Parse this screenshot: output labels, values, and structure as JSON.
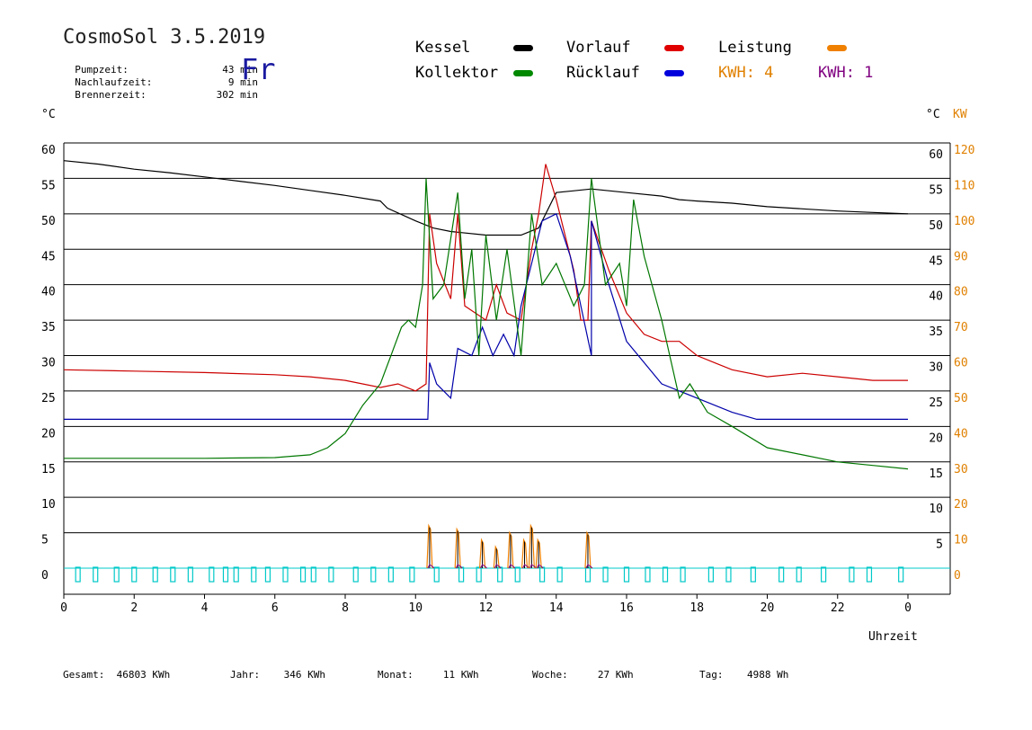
{
  "header": {
    "title": "CosmoSol 3.5.2019",
    "day": "Fr",
    "stats": [
      {
        "label": "Pumpzeit:",
        "value": "43 min"
      },
      {
        "label": "Nachlaufzeit:",
        "value": "9 min"
      },
      {
        "label": "Brennerzeit:",
        "value": "302 min"
      }
    ]
  },
  "legend": {
    "kessel": "Kessel",
    "vorlauf": "Vorlauf",
    "leistung": "Leistung",
    "kollektor": "Kollektor",
    "ruecklauf": "Rücklauf",
    "kwh_orange": "KWH: 4",
    "kwh_purple": "KWH: 1"
  },
  "axes": {
    "left_unit": "°C",
    "right_unit_c": "°C",
    "right_unit_kw": "KW",
    "x_label": "Uhrzeit"
  },
  "totals": [
    {
      "label": "Gesamt:",
      "value": "46803 KWh"
    },
    {
      "label": "Jahr:",
      "value": "346 KWh"
    },
    {
      "label": "Monat:",
      "value": "11 KWh"
    },
    {
      "label": "Woche:",
      "value": "27 KWh"
    },
    {
      "label": "Tag:",
      "value": "4988 Wh"
    }
  ],
  "colors": {
    "kessel": "#000000",
    "vorlauf": "#cc0000",
    "ruecklauf": "#0000aa",
    "kollektor": "#007700",
    "leistung": "#f08000",
    "kwh_purple": "#800080",
    "pump": "#00c8c8"
  },
  "chart_data": {
    "type": "line",
    "x_unit": "hours",
    "xlim": [
      0,
      24
    ],
    "x_ticks": [
      "0",
      "2",
      "4",
      "6",
      "8",
      "10",
      "12",
      "14",
      "16",
      "18",
      "20",
      "22",
      "0"
    ],
    "y_left_ticks": [
      "0",
      "5",
      "10",
      "15",
      "20",
      "25",
      "30",
      "35",
      "40",
      "45",
      "50",
      "55",
      "60"
    ],
    "y_right_c_ticks": [
      "5",
      "10",
      "15",
      "20",
      "25",
      "30",
      "35",
      "40",
      "45",
      "50",
      "55",
      "60"
    ],
    "y_right_kw_ticks": [
      "0",
      "10",
      "20",
      "30",
      "40",
      "50",
      "60",
      "70",
      "80",
      "90",
      "100",
      "110",
      "120"
    ],
    "ylim": [
      0,
      60
    ],
    "grid": true,
    "series": [
      {
        "name": "Kessel",
        "color": "#000000",
        "points": [
          [
            0,
            57.5
          ],
          [
            1,
            57
          ],
          [
            2,
            56.3
          ],
          [
            3,
            55.8
          ],
          [
            4,
            55.2
          ],
          [
            5,
            54.6
          ],
          [
            6,
            54
          ],
          [
            7,
            53.3
          ],
          [
            8,
            52.6
          ],
          [
            9,
            51.8
          ],
          [
            9.2,
            50.8
          ],
          [
            10,
            49
          ],
          [
            10.5,
            48
          ],
          [
            11,
            47.5
          ],
          [
            12,
            47
          ],
          [
            13,
            47
          ],
          [
            13.5,
            48
          ],
          [
            14,
            53
          ],
          [
            15,
            53.5
          ],
          [
            16,
            53
          ],
          [
            17,
            52.5
          ],
          [
            17.5,
            52
          ],
          [
            18,
            51.8
          ],
          [
            19,
            51.5
          ],
          [
            20,
            51
          ],
          [
            21,
            50.7
          ],
          [
            22,
            50.4
          ],
          [
            23,
            50.2
          ],
          [
            24,
            50
          ]
        ]
      },
      {
        "name": "Vorlauf",
        "color": "#cc0000",
        "points": [
          [
            0,
            28
          ],
          [
            2,
            27.8
          ],
          [
            4,
            27.6
          ],
          [
            6,
            27.3
          ],
          [
            7,
            27
          ],
          [
            8,
            26.5
          ],
          [
            9,
            25.5
          ],
          [
            9.5,
            26
          ],
          [
            10,
            25
          ],
          [
            10.3,
            26
          ],
          [
            10.4,
            50
          ],
          [
            10.6,
            43
          ],
          [
            11,
            38
          ],
          [
            11.2,
            50
          ],
          [
            11.4,
            37
          ],
          [
            12,
            35
          ],
          [
            12.3,
            40
          ],
          [
            12.6,
            36
          ],
          [
            13,
            35
          ],
          [
            13.3,
            45
          ],
          [
            13.5,
            50
          ],
          [
            13.7,
            57
          ],
          [
            14,
            52
          ],
          [
            14.5,
            42
          ],
          [
            14.7,
            35
          ],
          [
            14.9,
            35
          ],
          [
            15,
            49
          ],
          [
            15.5,
            42
          ],
          [
            16,
            36
          ],
          [
            16.5,
            33
          ],
          [
            17,
            32
          ],
          [
            17.5,
            32
          ],
          [
            18,
            30
          ],
          [
            18.5,
            29
          ],
          [
            19,
            28
          ],
          [
            20,
            27
          ],
          [
            21,
            27.5
          ],
          [
            22,
            27
          ],
          [
            23,
            26.5
          ],
          [
            24,
            26.5
          ]
        ]
      },
      {
        "name": "Rücklauf",
        "color": "#0000aa",
        "points": [
          [
            0,
            21
          ],
          [
            2,
            21
          ],
          [
            4,
            21
          ],
          [
            6,
            21
          ],
          [
            8,
            21
          ],
          [
            10,
            21
          ],
          [
            10.35,
            21
          ],
          [
            10.4,
            29
          ],
          [
            10.6,
            26
          ],
          [
            11,
            24
          ],
          [
            11.2,
            31
          ],
          [
            11.6,
            30
          ],
          [
            11.9,
            34
          ],
          [
            12.2,
            30
          ],
          [
            12.5,
            33
          ],
          [
            12.8,
            30
          ],
          [
            13,
            37
          ],
          [
            13.3,
            43
          ],
          [
            13.6,
            49
          ],
          [
            14,
            50
          ],
          [
            14.4,
            44
          ],
          [
            15,
            30
          ],
          [
            15,
            49
          ],
          [
            15.5,
            40
          ],
          [
            16,
            32
          ],
          [
            17,
            26
          ],
          [
            18,
            24
          ],
          [
            19,
            22
          ],
          [
            19.7,
            21
          ],
          [
            20,
            21
          ],
          [
            22,
            21
          ],
          [
            24,
            21
          ]
        ]
      },
      {
        "name": "Kollektor",
        "color": "#007700",
        "points": [
          [
            0,
            15.5
          ],
          [
            2,
            15.5
          ],
          [
            4,
            15.5
          ],
          [
            6,
            15.6
          ],
          [
            7,
            16
          ],
          [
            7.5,
            17
          ],
          [
            8,
            19
          ],
          [
            8.5,
            23
          ],
          [
            9,
            26
          ],
          [
            9.3,
            30
          ],
          [
            9.6,
            34
          ],
          [
            9.8,
            35
          ],
          [
            10,
            34
          ],
          [
            10.2,
            40
          ],
          [
            10.3,
            55
          ],
          [
            10.5,
            38
          ],
          [
            10.8,
            40
          ],
          [
            11.2,
            53
          ],
          [
            11.4,
            38
          ],
          [
            11.6,
            45
          ],
          [
            11.8,
            30
          ],
          [
            12,
            47
          ],
          [
            12.3,
            35
          ],
          [
            12.6,
            45
          ],
          [
            13,
            30
          ],
          [
            13.3,
            50
          ],
          [
            13.6,
            40
          ],
          [
            14,
            43
          ],
          [
            14.5,
            37
          ],
          [
            14.8,
            40
          ],
          [
            15,
            55
          ],
          [
            15.4,
            40
          ],
          [
            15.8,
            43
          ],
          [
            16,
            37
          ],
          [
            16.2,
            52
          ],
          [
            16.5,
            44
          ],
          [
            17,
            35
          ],
          [
            17.5,
            24
          ],
          [
            17.8,
            26
          ],
          [
            18.3,
            22
          ],
          [
            19,
            20
          ],
          [
            20,
            17
          ],
          [
            21,
            16
          ],
          [
            22,
            15
          ],
          [
            23,
            14.5
          ],
          [
            24,
            14
          ]
        ]
      }
    ],
    "bars_kw": {
      "name": "Leistung",
      "spikes_hours": [
        10.4,
        11.2,
        11.9,
        12.3,
        12.7,
        13.1,
        13.3,
        13.5,
        14.9
      ],
      "spikes_kw": [
        12,
        11,
        8,
        6,
        10,
        8,
        12,
        8,
        10
      ]
    },
    "pump_pulses_hours": [
      0.4,
      0.9,
      1.5,
      2.0,
      2.6,
      3.1,
      3.6,
      4.2,
      4.6,
      4.9,
      5.4,
      5.8,
      6.3,
      6.8,
      7.1,
      7.6,
      8.3,
      8.8,
      9.3,
      9.9,
      10.6,
      11.3,
      11.8,
      12.4,
      12.9,
      13.6,
      14.1,
      14.9,
      15.4,
      16.0,
      16.6,
      17.1,
      17.6,
      18.4,
      18.9,
      19.6,
      20.4,
      20.9,
      21.6,
      22.4,
      22.9,
      23.8
    ]
  }
}
